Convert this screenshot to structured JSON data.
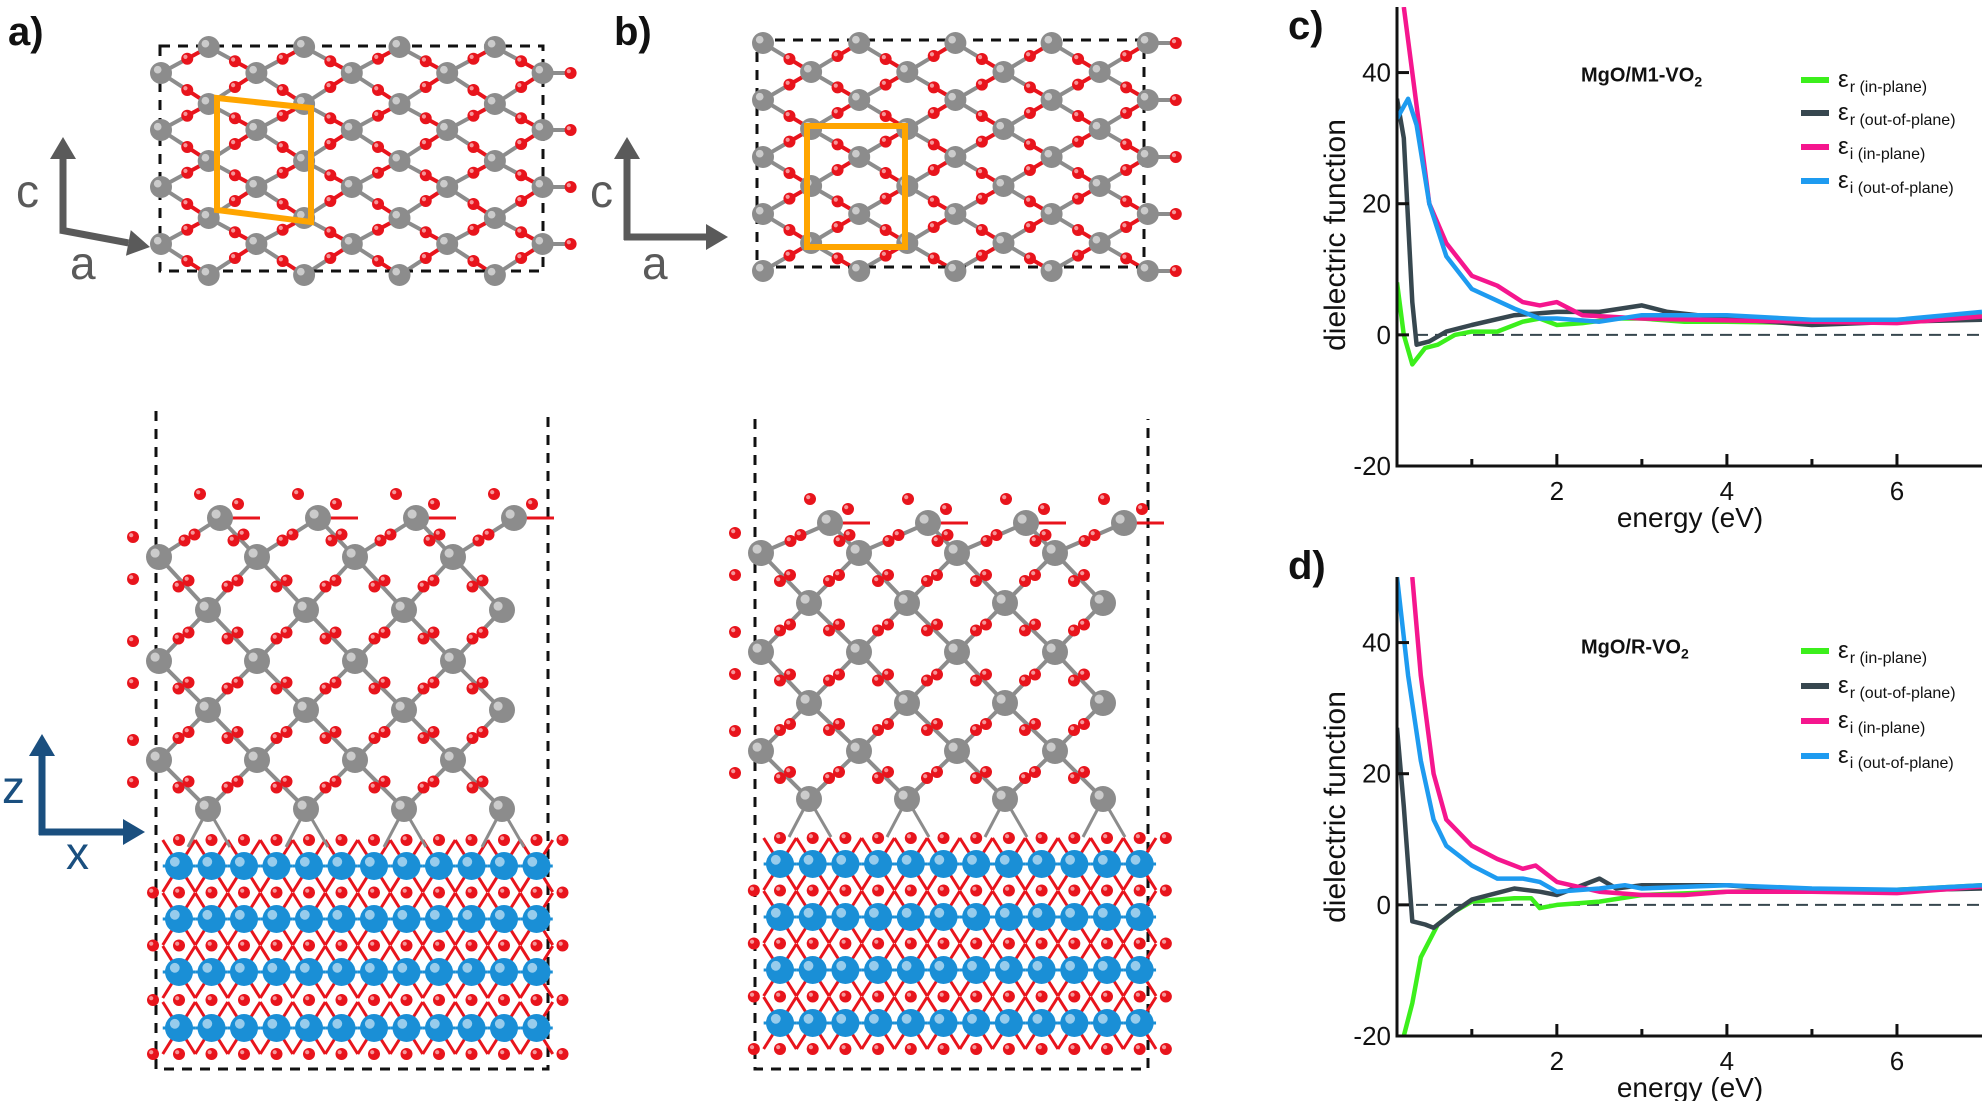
{
  "panels": {
    "a": {
      "label": "a)",
      "top_axes": {
        "vertical": "c",
        "horizontal": "a"
      },
      "side_axes": {
        "vertical": "z",
        "horizontal": "x"
      }
    },
    "b": {
      "label": "b)",
      "top_axes": {
        "vertical": "c",
        "horizontal": "a"
      }
    },
    "c": {
      "label": "c)"
    },
    "d": {
      "label": "d)"
    }
  },
  "colors": {
    "vanadium": "#8c8c8c",
    "oxygen": "#e8141c",
    "magnesium": "#1a8fd6",
    "unit_cell": "#ffa500",
    "top_axis_arrow": "#5a5a5a",
    "side_axis_arrow": "#1a4f7f"
  },
  "chart_data": [
    {
      "type": "line",
      "title_base": "MgO/M1-VO",
      "title_subscript": "2",
      "xlabel": "energy (eV)",
      "ylabel": "dielectric function",
      "xlim": [
        0.12,
        7.0
      ],
      "ylim": [
        -20,
        50
      ],
      "xticks": [
        2,
        4,
        6
      ],
      "xminor": [
        1,
        3,
        5
      ],
      "yticks": [
        -20,
        0,
        20,
        40
      ],
      "reference_line": 0,
      "grid": false,
      "legend_position": "top-right",
      "series": [
        {
          "name": "εr (in-plane)",
          "symbol": "ε",
          "subscript": "r (in-plane)",
          "color": "#3cef1c",
          "x": [
            0.12,
            0.2,
            0.3,
            0.45,
            0.6,
            0.8,
            1.0,
            1.3,
            1.6,
            1.8,
            2.0,
            2.3,
            2.7,
            3.0,
            3.5,
            4,
            5,
            6,
            7
          ],
          "y": [
            8,
            0,
            -4.5,
            -2,
            -1.5,
            0,
            0.5,
            0.5,
            2,
            2.5,
            1.5,
            1.8,
            2.5,
            2.5,
            2,
            2,
            1.8,
            2,
            3
          ]
        },
        {
          "name": "εr (out-of-plane)",
          "symbol": "ε",
          "subscript": "r (out-of-plane)",
          "color": "#37474f",
          "x": [
            0.12,
            0.2,
            0.3,
            0.35,
            0.5,
            0.7,
            1.0,
            1.5,
            2.0,
            2.5,
            3.0,
            3.3,
            4,
            5,
            6,
            7
          ],
          "y": [
            36,
            30,
            5,
            -1.5,
            -1,
            0.5,
            1.5,
            3,
            3.5,
            3.5,
            4.5,
            3.5,
            2.5,
            1.5,
            2,
            2.3
          ]
        },
        {
          "name": "εi (in-plane)",
          "symbol": "ε",
          "subscript": "i (in-plane)",
          "color": "#f5168e",
          "x": [
            0.2,
            0.3,
            0.5,
            0.7,
            1.0,
            1.3,
            1.6,
            1.8,
            2.0,
            2.3,
            3,
            4,
            5,
            6,
            7
          ],
          "y": [
            50,
            40,
            20,
            14,
            9,
            7.5,
            5,
            4.5,
            5,
            3,
            2.5,
            2.2,
            2,
            1.8,
            2.8
          ]
        },
        {
          "name": "εi (out-of-plane)",
          "symbol": "ε",
          "subscript": "i (out-of-plane)",
          "color": "#1e9bf0",
          "x": [
            0.12,
            0.25,
            0.35,
            0.5,
            0.7,
            1.0,
            1.5,
            1.8,
            2.0,
            2.5,
            3,
            4,
            5,
            6,
            7
          ],
          "y": [
            33,
            36,
            32,
            20,
            12,
            7,
            4,
            2.5,
            2.5,
            2,
            3,
            3,
            2.3,
            2.3,
            3.5
          ]
        }
      ]
    },
    {
      "type": "line",
      "title_base": "MgO/R-VO",
      "title_subscript": "2",
      "xlabel": "energy (eV)",
      "ylabel": "dielectric function",
      "xlim": [
        0.12,
        7.0
      ],
      "ylim": [
        -20,
        50
      ],
      "xticks": [
        2,
        4,
        6
      ],
      "xminor": [
        1,
        3,
        5
      ],
      "yticks": [
        -20,
        0,
        20,
        40
      ],
      "reference_line": 0,
      "grid": false,
      "legend_position": "top-right",
      "series": [
        {
          "name": "εr (in-plane)",
          "symbol": "ε",
          "subscript": "r (in-plane)",
          "color": "#3cef1c",
          "x": [
            0.2,
            0.3,
            0.4,
            0.6,
            0.8,
            1.0,
            1.5,
            1.7,
            1.8,
            2.0,
            2.5,
            3,
            4,
            5,
            6,
            7
          ],
          "y": [
            -20,
            -15,
            -8,
            -3,
            -1,
            0.5,
            1,
            1,
            -0.5,
            0,
            0.5,
            1.5,
            2,
            2.3,
            2.3,
            3
          ]
        },
        {
          "name": "εr (out-of-plane)",
          "symbol": "ε",
          "subscript": "r (out-of-plane)",
          "color": "#37474f",
          "x": [
            0.12,
            0.2,
            0.3,
            0.45,
            0.55,
            0.8,
            1.0,
            1.5,
            1.8,
            2.0,
            2.5,
            2.7,
            3,
            3.5,
            4,
            5,
            6,
            7
          ],
          "y": [
            27,
            15,
            -2.5,
            -3,
            -3.5,
            -1,
            0.8,
            2.5,
            2,
            1.5,
            4,
            2.5,
            3,
            3,
            3,
            2,
            2.2,
            2.5
          ]
        },
        {
          "name": "εi (in-plane)",
          "symbol": "ε",
          "subscript": "i (in-plane)",
          "color": "#f5168e",
          "x": [
            0.3,
            0.4,
            0.55,
            0.7,
            1.0,
            1.3,
            1.6,
            1.75,
            2.0,
            2.5,
            3,
            3.5,
            4,
            5,
            6,
            7
          ],
          "y": [
            50,
            35,
            20,
            13,
            9,
            7,
            5.5,
            6,
            3.5,
            2,
            1.5,
            1.5,
            2,
            2,
            1.8,
            2.8
          ]
        },
        {
          "name": "εi (out-of-plane)",
          "symbol": "ε",
          "subscript": "i (out-of-plane)",
          "color": "#1e9bf0",
          "x": [
            0.12,
            0.25,
            0.4,
            0.55,
            0.7,
            1.0,
            1.3,
            1.6,
            1.8,
            2.0,
            2.5,
            2.8,
            3,
            4,
            5,
            6,
            7
          ],
          "y": [
            50,
            35,
            22,
            13,
            9,
            6,
            4,
            4,
            3.5,
            2,
            2.5,
            3,
            2.5,
            3,
            2.5,
            2.3,
            3
          ]
        }
      ]
    }
  ]
}
